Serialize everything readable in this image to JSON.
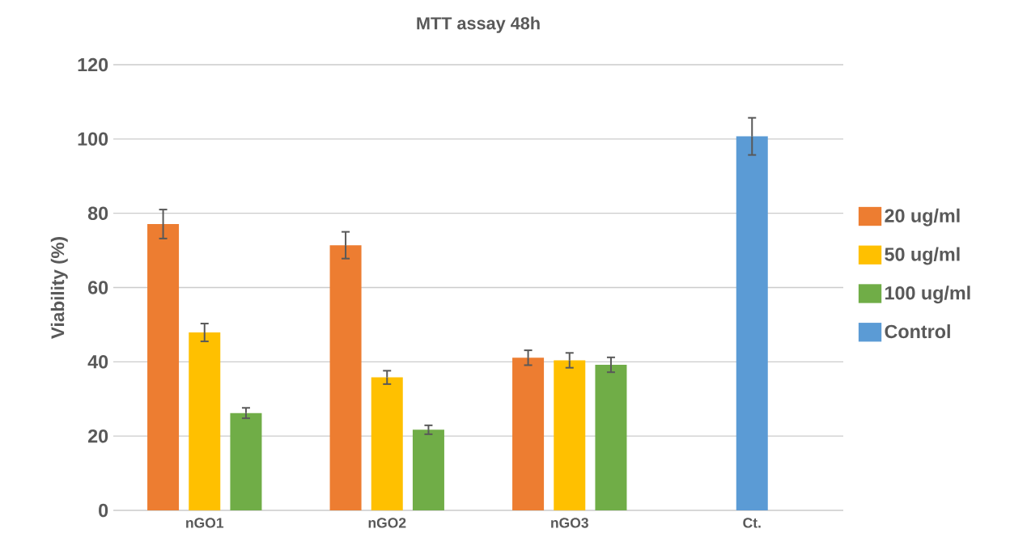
{
  "chart_data": {
    "type": "bar",
    "title": "MTT assay 48h",
    "ylabel": "Viability (%)",
    "categories": [
      "nGO1",
      "nGO2",
      "nGO3",
      "Ct."
    ],
    "series": [
      {
        "name": "20 ug/ml",
        "color": "#ed7d31",
        "values": [
          77.1,
          71.4,
          41.1,
          null
        ],
        "errors": [
          3.9,
          3.6,
          2.0,
          null
        ]
      },
      {
        "name": "50 ug/ml",
        "color": "#ffc000",
        "values": [
          47.9,
          35.8,
          40.4,
          null
        ],
        "errors": [
          2.4,
          1.8,
          2.0,
          null
        ]
      },
      {
        "name": "100 ug/ml",
        "color": "#70ad47",
        "values": [
          26.2,
          21.7,
          39.2,
          null
        ],
        "errors": [
          1.4,
          1.2,
          2.0,
          null
        ]
      },
      {
        "name": "Control",
        "color": "#5b9bd5",
        "values": [
          null,
          null,
          null,
          100.7
        ],
        "errors": [
          null,
          null,
          null,
          5.0
        ]
      }
    ],
    "ylim": [
      0,
      120
    ],
    "yticks": [
      0,
      20,
      40,
      60,
      80,
      100,
      120
    ],
    "grid": "y",
    "legend": "right"
  }
}
